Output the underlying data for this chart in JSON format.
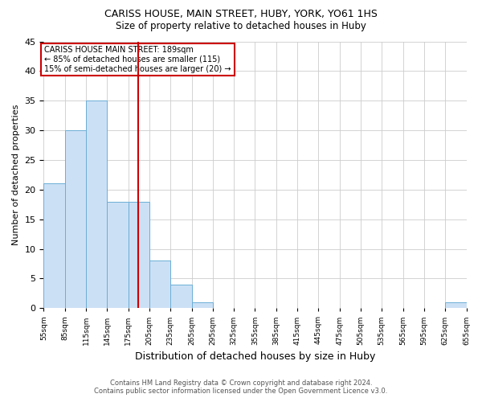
{
  "title1": "CARISS HOUSE, MAIN STREET, HUBY, YORK, YO61 1HS",
  "title2": "Size of property relative to detached houses in Huby",
  "xlabel": "Distribution of detached houses by size in Huby",
  "ylabel": "Number of detached properties",
  "bin_edges": [
    55,
    85,
    115,
    145,
    175,
    205,
    235,
    265,
    295,
    325,
    355,
    385,
    415,
    445,
    475,
    505,
    535,
    565,
    595,
    625,
    655
  ],
  "counts": [
    21,
    30,
    35,
    18,
    18,
    8,
    4,
    1,
    0,
    0,
    0,
    0,
    0,
    0,
    0,
    0,
    0,
    0,
    0,
    1,
    0
  ],
  "bar_facecolor": "#cce0f5",
  "bar_edgecolor": "#6baed6",
  "vline_x": 189,
  "vline_color": "#cc0000",
  "annotation_title": "CARISS HOUSE MAIN STREET: 189sqm",
  "annotation_line2": "← 85% of detached houses are smaller (115)",
  "annotation_line3": "15% of semi-detached houses are larger (20) →",
  "annotation_box_edgecolor": "#cc0000",
  "ylim": [
    0,
    45
  ],
  "yticks": [
    0,
    5,
    10,
    15,
    20,
    25,
    30,
    35,
    40,
    45
  ],
  "footer1": "Contains HM Land Registry data © Crown copyright and database right 2024.",
  "footer2": "Contains public sector information licensed under the Open Government Licence v3.0.",
  "background_color": "#ffffff",
  "grid_color": "#cccccc"
}
